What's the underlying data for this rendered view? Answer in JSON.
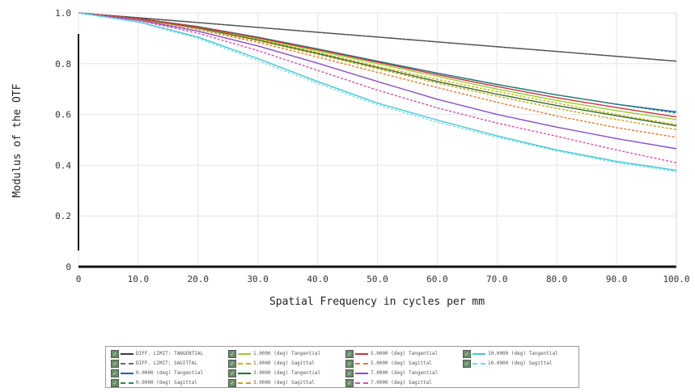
{
  "chart_data": {
    "type": "line",
    "xlabel": "Spatial Frequency in cycles per mm",
    "ylabel": "Modulus of the OTF",
    "xlim": [
      0,
      100
    ],
    "ylim": [
      0,
      1.0
    ],
    "x_ticks": [
      "0",
      "10.0",
      "20.0",
      "30.0",
      "40.0",
      "50.0",
      "60.0",
      "70.0",
      "80.0",
      "90.0",
      "100.0"
    ],
    "y_ticks": [
      "0",
      "0.2",
      "0.4",
      "0.6",
      "0.8",
      "1.0"
    ],
    "grid": true,
    "legend_placement": "below",
    "x": [
      0,
      10,
      20,
      30,
      40,
      50,
      60,
      70,
      80,
      90,
      100
    ],
    "series": [
      {
        "name": "DIFF. LIMIT: TANGENTIAL",
        "color": "#3a3a3a",
        "dash": false,
        "values": [
          1.0,
          0.981,
          0.962,
          0.943,
          0.924,
          0.905,
          0.886,
          0.867,
          0.848,
          0.829,
          0.81
        ]
      },
      {
        "name": "DIFF. LIMIT: SAGITTAL",
        "color": "#666666",
        "dash": true,
        "values": [
          1.0,
          0.981,
          0.962,
          0.943,
          0.924,
          0.905,
          0.886,
          0.867,
          0.848,
          0.829,
          0.81
        ]
      },
      {
        "name": "0.0000 (deg) Tangential",
        "color": "#1a5fb4",
        "dash": false,
        "values": [
          1.0,
          0.978,
          0.946,
          0.904,
          0.858,
          0.81,
          0.763,
          0.718,
          0.677,
          0.64,
          0.61
        ]
      },
      {
        "name": "0.0000 (deg) Sagittal",
        "color": "#2e8b57",
        "dash": true,
        "values": [
          1.0,
          0.978,
          0.946,
          0.904,
          0.858,
          0.81,
          0.763,
          0.718,
          0.677,
          0.64,
          0.605
        ]
      },
      {
        "name": "1.0000 (deg) Tangential",
        "color": "#9acd32",
        "dash": false,
        "values": [
          1.0,
          0.977,
          0.944,
          0.9,
          0.85,
          0.8,
          0.75,
          0.7,
          0.655,
          0.615,
          0.58
        ]
      },
      {
        "name": "1.0000 (deg) Sagittal",
        "color": "#c8b400",
        "dash": true,
        "values": [
          1.0,
          0.977,
          0.942,
          0.896,
          0.844,
          0.79,
          0.738,
          0.69,
          0.645,
          0.6,
          0.56
        ]
      },
      {
        "name": "3.0000 (deg) Tangential",
        "color": "#2f6b2f",
        "dash": false,
        "values": [
          1.0,
          0.976,
          0.94,
          0.893,
          0.84,
          0.785,
          0.73,
          0.68,
          0.635,
          0.595,
          0.555
        ]
      },
      {
        "name": "3.0000 (deg) Sagittal",
        "color": "#d4a017",
        "dash": true,
        "values": [
          1.0,
          0.976,
          0.938,
          0.89,
          0.836,
          0.78,
          0.724,
          0.672,
          0.624,
          0.58,
          0.54
        ]
      },
      {
        "name": "5.0000 (deg) Tangential",
        "color": "#c8323c",
        "dash": false,
        "values": [
          1.0,
          0.978,
          0.945,
          0.902,
          0.855,
          0.806,
          0.757,
          0.71,
          0.666,
          0.627,
          0.59
        ]
      },
      {
        "name": "5.0000 (deg) Sagittal",
        "color": "#e07a30",
        "dash": true,
        "values": [
          1.0,
          0.975,
          0.935,
          0.884,
          0.826,
          0.766,
          0.706,
          0.648,
          0.594,
          0.548,
          0.51
        ]
      },
      {
        "name": "7.0000 (deg) Tangential",
        "color": "#8a4fc8",
        "dash": false,
        "values": [
          1.0,
          0.972,
          0.928,
          0.87,
          0.802,
          0.73,
          0.66,
          0.6,
          0.55,
          0.505,
          0.465
        ]
      },
      {
        "name": "7.0000 (deg) Sagittal",
        "color": "#d94fb0",
        "dash": true,
        "values": [
          1.0,
          0.97,
          0.92,
          0.852,
          0.774,
          0.696,
          0.626,
          0.566,
          0.514,
          0.46,
          0.41
        ]
      },
      {
        "name": "10.0000 (deg) Tangential",
        "color": "#3ec8d8",
        "dash": false,
        "values": [
          1.0,
          0.965,
          0.905,
          0.82,
          0.73,
          0.645,
          0.578,
          0.516,
          0.46,
          0.415,
          0.38
        ]
      },
      {
        "name": "10.0000 (deg) Sagittal",
        "color": "#7fd8e0",
        "dash": true,
        "values": [
          1.0,
          0.963,
          0.9,
          0.812,
          0.722,
          0.638,
          0.57,
          0.51,
          0.456,
          0.41,
          0.375
        ]
      }
    ]
  }
}
